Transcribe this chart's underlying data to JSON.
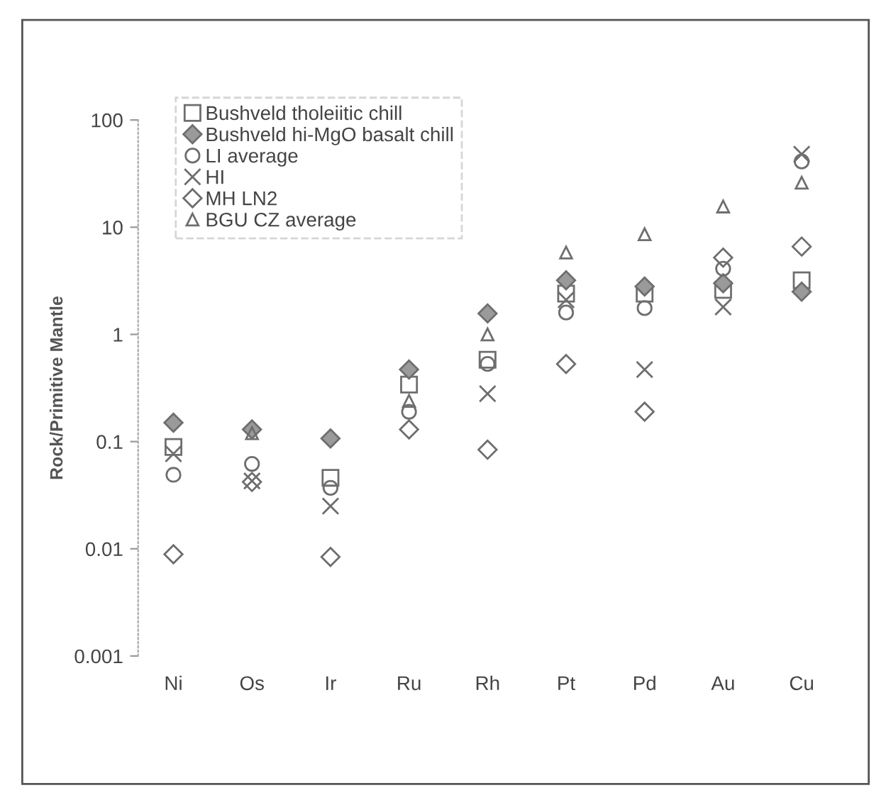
{
  "chart_data": {
    "type": "scatter",
    "ylabel": "Rock/Primitive Mantle",
    "log": "y",
    "ylim": [
      0.001,
      100
    ],
    "yticks": [
      0.001,
      0.01,
      0.1,
      1,
      10,
      100
    ],
    "grid": false,
    "legend": "top left",
    "categories": [
      "Ni",
      "Os",
      "Ir",
      "Ru",
      "Rh",
      "Pt",
      "Pd",
      "Au",
      "Cu"
    ],
    "series": [
      {
        "name": "Bushveld tholeiitic chill",
        "marker": "square",
        "color": "#6e6e6e",
        "values": [
          0.089,
          null,
          0.046,
          0.34,
          0.58,
          2.4,
          2.4,
          2.6,
          3.2
        ]
      },
      {
        "name": "Bushveld hi-MgO basalt chill",
        "marker": "diamond",
        "color": "#9a9a9a",
        "values": [
          0.15,
          0.13,
          0.107,
          0.47,
          1.57,
          3.2,
          2.8,
          3.0,
          2.5
        ]
      },
      {
        "name": "LI average",
        "marker": "circle",
        "color": "#6e6e6e",
        "values": [
          0.049,
          0.062,
          0.037,
          0.19,
          0.53,
          1.6,
          1.76,
          4.1,
          41
        ]
      },
      {
        "name": "HI",
        "marker": "cross",
        "color": "#6e6e6e",
        "values": [
          0.077,
          0.043,
          0.025,
          null,
          0.28,
          2.1,
          0.47,
          1.8,
          48
        ]
      },
      {
        "name": "MH LN2",
        "marker": "diamond",
        "color": "#6e6e6e",
        "values": [
          0.0089,
          0.042,
          0.0084,
          0.13,
          0.084,
          0.53,
          0.19,
          5.2,
          6.6
        ]
      },
      {
        "name": "BGU CZ average",
        "marker": "triangle",
        "color": "#6e6e6e",
        "values": [
          null,
          0.12,
          null,
          0.24,
          1.0,
          5.8,
          8.6,
          15.6,
          26
        ]
      }
    ]
  }
}
